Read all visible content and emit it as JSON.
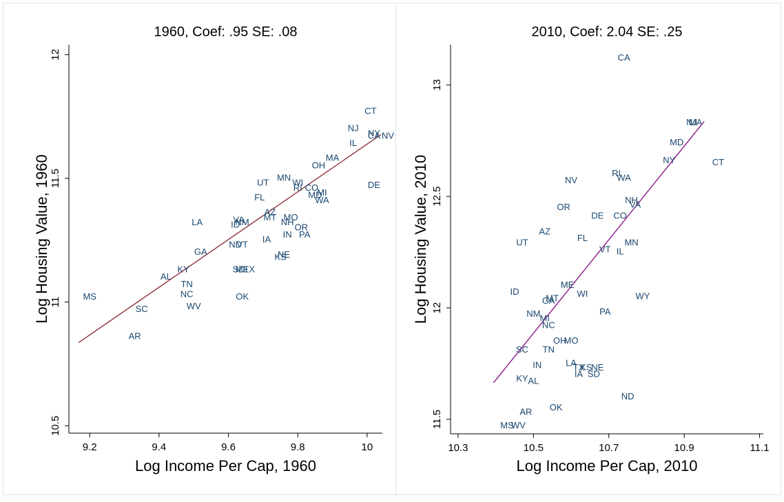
{
  "chart_data": [
    {
      "type": "scatter",
      "title": "1960, Coef: .95 SE: .08",
      "xlabel": "Log Income Per Cap, 1960",
      "ylabel": "Log Housing Value, 1960",
      "labels": [
        "MS",
        "SC",
        "AR",
        "WV",
        "NC",
        "TN",
        "AL",
        "KY",
        "GA",
        "LA",
        "ID",
        "NM",
        "VA",
        "ND",
        "VT",
        "SD",
        "ME",
        "TX",
        "OK",
        "IA",
        "MT",
        "AZ",
        "FL",
        "UT",
        "MN",
        "WI",
        "RI",
        "CO",
        "MD",
        "MI",
        "WA",
        "MO",
        "NH",
        "OR",
        "IN",
        "PA",
        "NE",
        "KS",
        "OH",
        "MA",
        "IL",
        "NJ",
        "CT",
        "NY",
        "CA",
        "NV",
        "DE"
      ],
      "x": [
        9.2,
        9.35,
        9.33,
        9.5,
        9.48,
        9.48,
        9.42,
        9.47,
        9.52,
        9.51,
        9.62,
        9.64,
        9.63,
        9.62,
        9.64,
        9.63,
        9.64,
        9.66,
        9.64,
        9.71,
        9.72,
        9.72,
        9.69,
        9.7,
        9.76,
        9.8,
        9.8,
        9.84,
        9.85,
        9.87,
        9.87,
        9.78,
        9.77,
        9.81,
        9.77,
        9.82,
        9.76,
        9.75,
        9.86,
        9.9,
        9.96,
        9.96,
        10.01,
        10.02,
        10.02,
        10.06,
        10.02
      ],
      "values": [
        11.02,
        10.97,
        10.86,
        10.98,
        11.03,
        11.07,
        11.1,
        11.13,
        11.2,
        11.32,
        11.31,
        11.32,
        11.33,
        11.23,
        11.23,
        11.13,
        11.13,
        11.13,
        11.02,
        11.25,
        11.34,
        11.36,
        11.42,
        11.48,
        11.5,
        11.48,
        11.46,
        11.46,
        11.43,
        11.44,
        11.41,
        11.34,
        11.32,
        11.3,
        11.27,
        11.27,
        11.19,
        11.18,
        11.55,
        11.58,
        11.64,
        11.7,
        11.77,
        11.68,
        11.67,
        11.67,
        11.47
      ],
      "color": "#1a476f",
      "fit": {
        "x": [
          9.168,
          10.04
        ],
        "values": [
          10.836,
          11.677
        ],
        "color": "#90353b"
      },
      "xlim": [
        9.14,
        10.044
      ],
      "ylim": [
        10.47,
        12.04
      ],
      "xticks": [
        9.2,
        9.4,
        9.6,
        9.8,
        10
      ],
      "yticks": [
        10.5,
        11,
        11.5,
        12
      ]
    },
    {
      "type": "scatter",
      "title": "2010, Coef: 2.04 SE: .25",
      "xlabel": "Log Income Per Cap, 2010",
      "ylabel": "Log Housing Value, 2010",
      "labels": [
        "CA",
        "NJ",
        "MA",
        "MD",
        "NY",
        "CT",
        "RI",
        "WA",
        "NV",
        "NH",
        "VA",
        "OR",
        "DE",
        "CO",
        "AZ",
        "UT",
        "FL",
        "MN",
        "VT",
        "IL",
        "ME",
        "ID",
        "MT",
        "GA",
        "WI",
        "WY",
        "NM",
        "PA",
        "MI",
        "NC",
        "OH",
        "MO",
        "SC",
        "TN",
        "IN",
        "LA",
        "TX",
        "KS",
        "NE",
        "IA",
        "SD",
        "KY",
        "AL",
        "ND",
        "AR",
        "OK",
        "MS",
        "WV"
      ],
      "x": [
        10.74,
        10.92,
        10.93,
        10.88,
        10.86,
        10.99,
        10.72,
        10.74,
        10.6,
        10.76,
        10.77,
        10.58,
        10.67,
        10.73,
        10.53,
        10.47,
        10.63,
        10.76,
        10.69,
        10.73,
        10.59,
        10.45,
        10.55,
        10.54,
        10.63,
        10.79,
        10.5,
        10.69,
        10.53,
        10.54,
        10.57,
        10.6,
        10.47,
        10.54,
        10.51,
        10.6,
        10.62,
        10.64,
        10.67,
        10.62,
        10.66,
        10.47,
        10.5,
        10.75,
        10.48,
        10.56,
        10.43,
        10.46
      ],
      "values": [
        13.12,
        12.83,
        12.83,
        12.74,
        12.66,
        12.65,
        12.6,
        12.58,
        12.57,
        12.48,
        12.46,
        12.45,
        12.41,
        12.41,
        12.34,
        12.29,
        12.31,
        12.29,
        12.26,
        12.25,
        12.1,
        12.07,
        12.04,
        12.03,
        12.06,
        12.05,
        11.97,
        11.98,
        11.95,
        11.92,
        11.85,
        11.85,
        11.81,
        11.81,
        11.74,
        11.75,
        11.73,
        11.73,
        11.73,
        11.7,
        11.7,
        11.68,
        11.67,
        11.6,
        11.53,
        11.55,
        11.47,
        11.47
      ],
      "color": "#1a476f",
      "fit": {
        "x": [
          10.394,
          10.953
        ],
        "values": [
          11.664,
          12.836
        ],
        "color": "#8b1a89"
      },
      "xlim": [
        10.28,
        11.11
      ],
      "ylim": [
        11.435,
        13.18
      ],
      "xticks": [
        10.3,
        10.5,
        10.7,
        10.9,
        11.1
      ],
      "yticks": [
        11.5,
        12,
        12.5,
        13
      ]
    }
  ]
}
